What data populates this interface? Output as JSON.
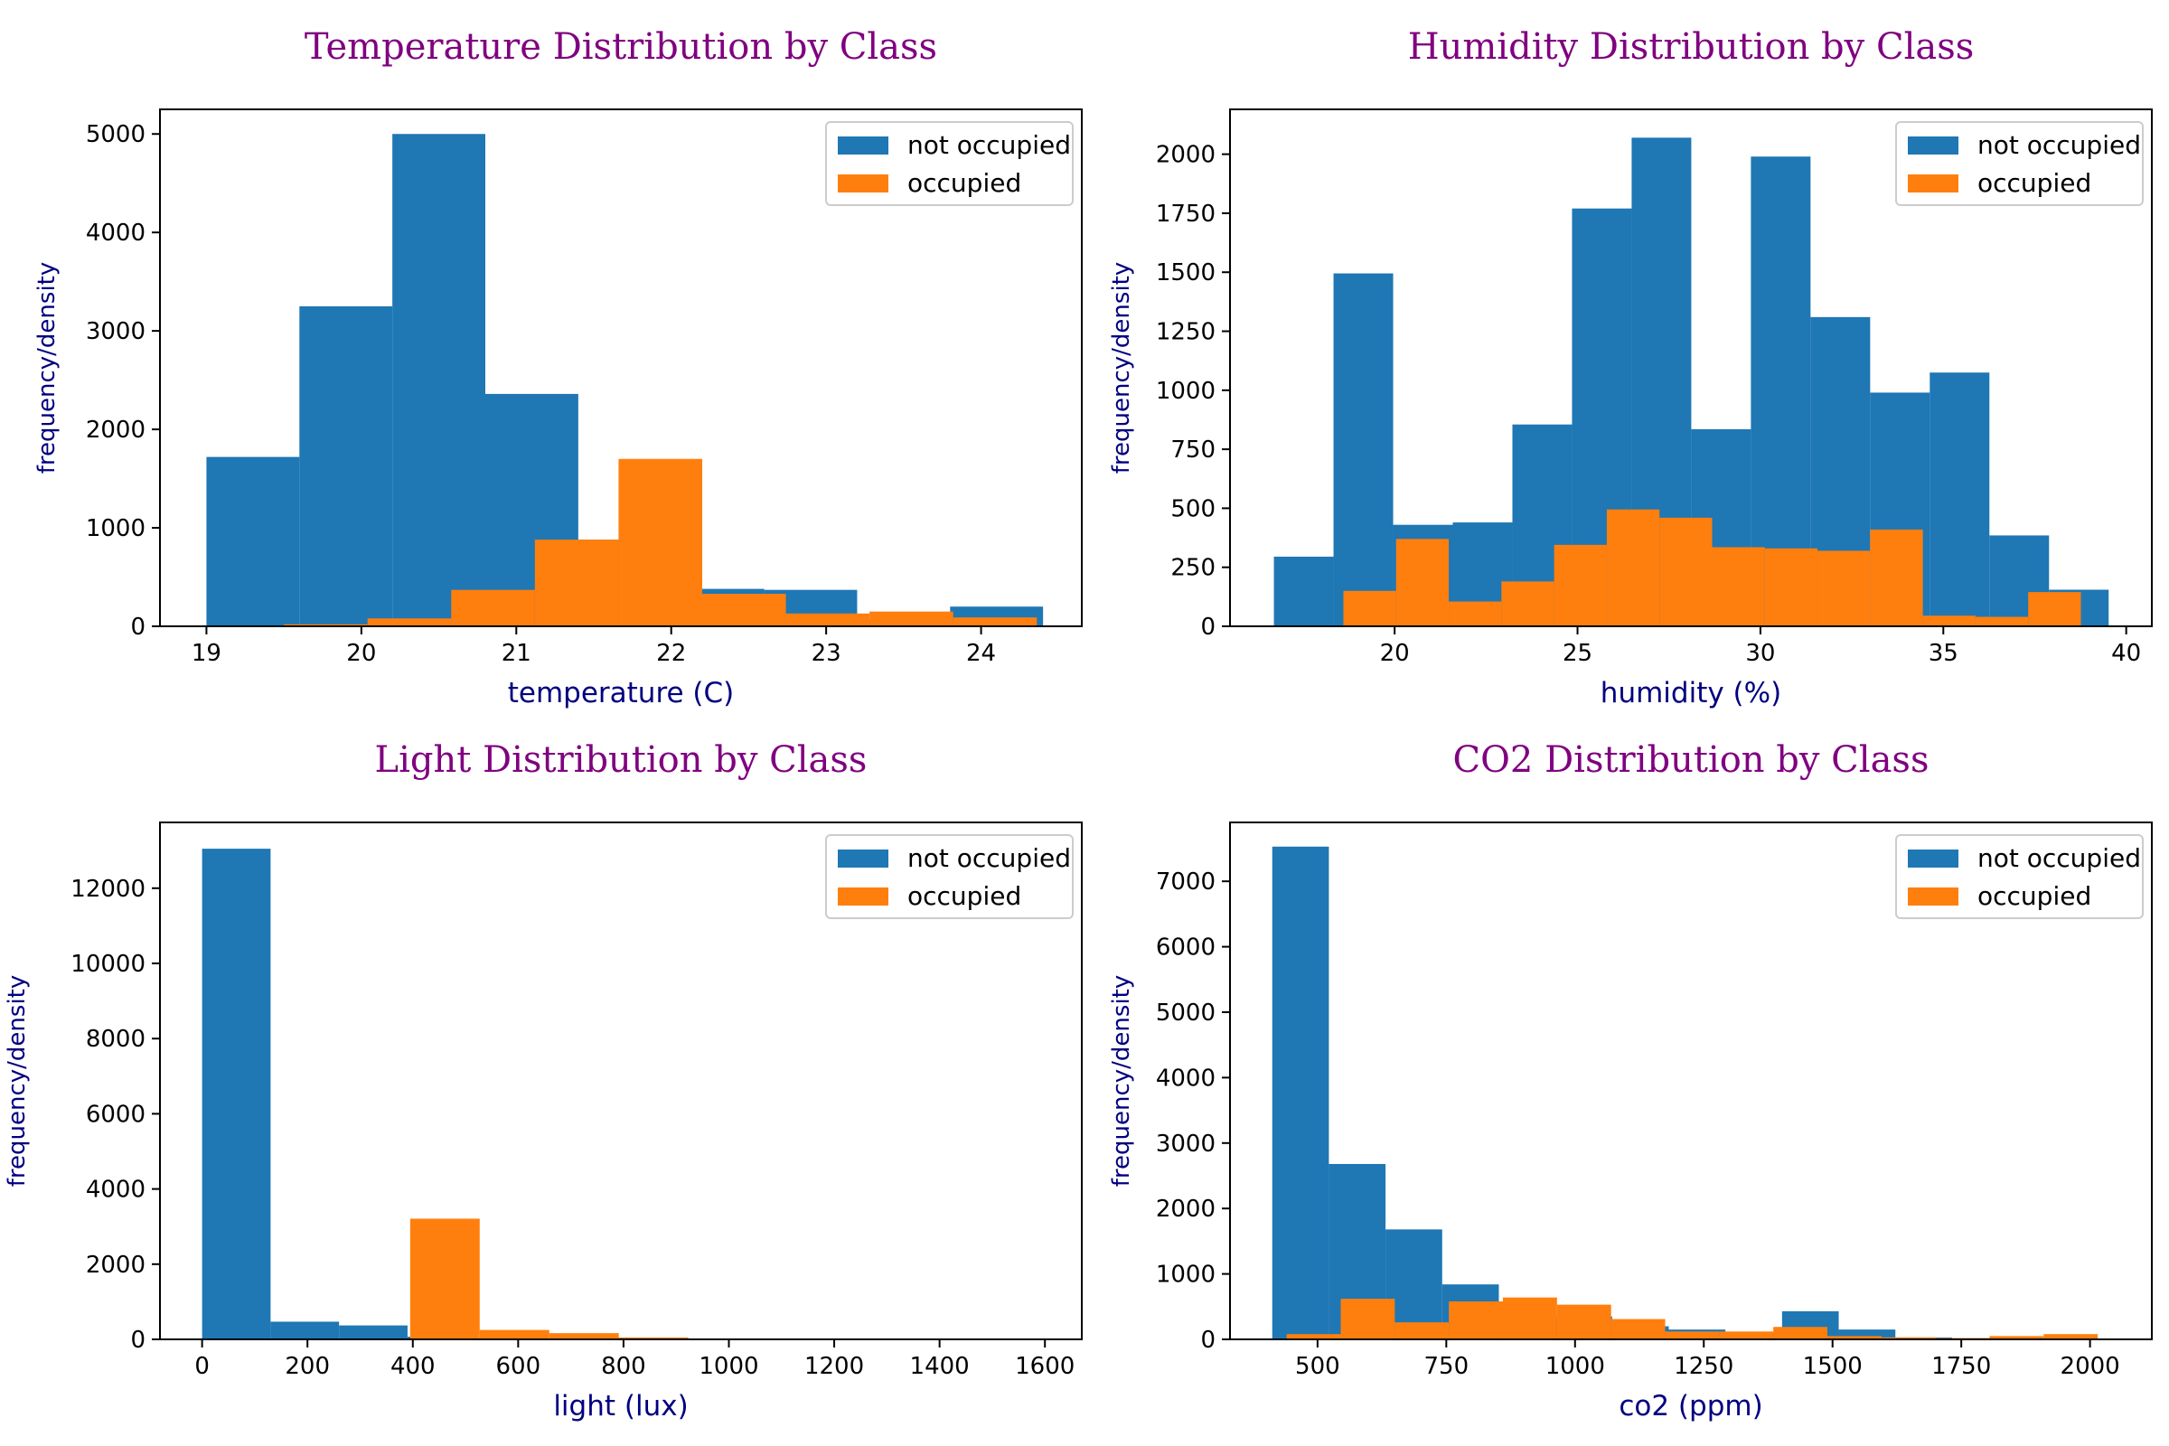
{
  "colors": {
    "not_occupied": "#1f77b4",
    "occupied": "#ff7f0e",
    "title": "#800080",
    "label": "#000080"
  },
  "chart_data": [
    {
      "type": "bar",
      "subtype": "histogram-overlay",
      "title": "Temperature Distribution by Class",
      "xlabel": "temperature (C)",
      "ylabel": "frequency/density",
      "xlim": [
        18.7,
        24.65
      ],
      "ylim": [
        0,
        5250
      ],
      "xticks": [
        19,
        20,
        21,
        22,
        23,
        24
      ],
      "yticks": [
        0,
        1000,
        2000,
        3000,
        4000,
        5000
      ],
      "legend": "top-right",
      "grid": false,
      "series": [
        {
          "name": "not occupied",
          "bins": [
            [
              19.0,
              19.6,
              1720
            ],
            [
              19.6,
              20.2,
              3250
            ],
            [
              20.2,
              20.8,
              5000
            ],
            [
              20.8,
              21.4,
              2360
            ],
            [
              21.4,
              22.0,
              880
            ],
            [
              22.0,
              22.6,
              380
            ],
            [
              22.6,
              23.2,
              370
            ],
            [
              23.2,
              23.8,
              60
            ],
            [
              23.8,
              24.4,
              200
            ]
          ]
        },
        {
          "name": "occupied",
          "bins": [
            [
              19.5,
              20.04,
              20
            ],
            [
              20.04,
              20.58,
              80
            ],
            [
              20.58,
              21.12,
              370
            ],
            [
              21.12,
              21.66,
              880
            ],
            [
              21.66,
              22.2,
              1700
            ],
            [
              22.2,
              22.74,
              330
            ],
            [
              22.74,
              23.28,
              130
            ],
            [
              23.28,
              23.82,
              150
            ],
            [
              23.82,
              24.36,
              90
            ]
          ]
        }
      ]
    },
    {
      "type": "bar",
      "subtype": "histogram-overlay",
      "title": "Humidity Distribution by Class",
      "xlabel": "humidity (%)",
      "ylabel": "frequency/density",
      "xlim": [
        15.5,
        40.7
      ],
      "ylim": [
        0,
        2190
      ],
      "xticks": [
        20,
        25,
        30,
        35,
        40
      ],
      "yticks": [
        0,
        250,
        500,
        750,
        1000,
        1250,
        1500,
        1750,
        2000
      ],
      "legend": "top-right",
      "grid": false,
      "series": [
        {
          "name": "not occupied",
          "bins": [
            [
              16.7,
              18.33,
              295
            ],
            [
              18.33,
              19.96,
              1495
            ],
            [
              19.96,
              21.59,
              430
            ],
            [
              21.59,
              23.22,
              440
            ],
            [
              23.22,
              24.85,
              855
            ],
            [
              24.85,
              26.48,
              1770
            ],
            [
              26.48,
              28.11,
              2070
            ],
            [
              28.11,
              29.74,
              835
            ],
            [
              29.74,
              31.37,
              1990
            ],
            [
              31.37,
              33.0,
              1310
            ],
            [
              33.0,
              34.63,
              990
            ],
            [
              34.63,
              36.26,
              1075
            ],
            [
              36.26,
              37.89,
              385
            ],
            [
              37.89,
              39.52,
              155
            ]
          ]
        },
        {
          "name": "occupied",
          "bins": [
            [
              18.6,
              20.04,
              150
            ],
            [
              20.04,
              21.48,
              370
            ],
            [
              21.48,
              22.92,
              105
            ],
            [
              22.92,
              24.36,
              190
            ],
            [
              24.36,
              25.8,
              345
            ],
            [
              25.8,
              27.24,
              495
            ],
            [
              27.24,
              28.68,
              460
            ],
            [
              28.68,
              30.12,
              335
            ],
            [
              30.12,
              31.56,
              330
            ],
            [
              31.56,
              33.0,
              320
            ],
            [
              33.0,
              34.44,
              410
            ],
            [
              34.44,
              35.88,
              45
            ],
            [
              35.88,
              37.32,
              40
            ],
            [
              37.32,
              38.76,
              145
            ]
          ]
        }
      ]
    },
    {
      "type": "bar",
      "subtype": "histogram-overlay",
      "title": "Light Distribution by Class",
      "xlabel": "light (lux)",
      "ylabel": "frequency/density",
      "xlim": [
        -80,
        1670
      ],
      "ylim": [
        0,
        13750
      ],
      "xticks": [
        0,
        200,
        400,
        600,
        800,
        1000,
        1200,
        1400,
        1600
      ],
      "yticks": [
        0,
        2000,
        4000,
        6000,
        8000,
        10000,
        12000
      ],
      "legend": "top-right",
      "grid": false,
      "series": [
        {
          "name": "not occupied",
          "bins": [
            [
              0,
              130,
              13050
            ],
            [
              130,
              260,
              470
            ],
            [
              260,
              390,
              370
            ],
            [
              390,
              520,
              70
            ],
            [
              520,
              650,
              40
            ],
            [
              650,
              780,
              20
            ],
            [
              780,
              910,
              10
            ],
            [
              910,
              1040,
              5
            ],
            [
              1040,
              1170,
              3
            ],
            [
              1170,
              1300,
              2
            ],
            [
              1300,
              1430,
              2
            ],
            [
              1430,
              1560,
              1
            ]
          ]
        },
        {
          "name": "occupied",
          "bins": [
            [
              395,
              527,
              3210
            ],
            [
              527,
              659,
              250
            ],
            [
              659,
              791,
              165
            ],
            [
              791,
              923,
              50
            ],
            [
              923,
              1055,
              8
            ],
            [
              1055,
              1187,
              4
            ],
            [
              1187,
              1319,
              2
            ],
            [
              1319,
              1451,
              2
            ],
            [
              1451,
              1583,
              1
            ]
          ]
        }
      ]
    },
    {
      "type": "bar",
      "subtype": "histogram-overlay",
      "title": "CO2 Distribution by Class",
      "xlabel": "co2 (ppm)",
      "ylabel": "frequency/density",
      "xlim": [
        330,
        2120
      ],
      "ylim": [
        0,
        7900
      ],
      "xticks": [
        500,
        750,
        1000,
        1250,
        1500,
        1750,
        2000
      ],
      "yticks": [
        0,
        1000,
        2000,
        3000,
        4000,
        5000,
        6000,
        7000
      ],
      "legend": "top-right",
      "grid": false,
      "series": [
        {
          "name": "not occupied",
          "bins": [
            [
              412,
              522,
              7530
            ],
            [
              522,
              632,
              2680
            ],
            [
              632,
              742,
              1680
            ],
            [
              742,
              852,
              840
            ],
            [
              852,
              962,
              500
            ],
            [
              962,
              1072,
              350
            ],
            [
              1072,
              1182,
              200
            ],
            [
              1182,
              1292,
              150
            ],
            [
              1292,
              1402,
              100
            ],
            [
              1402,
              1512,
              430
            ],
            [
              1512,
              1622,
              150
            ],
            [
              1622,
              1732,
              30
            ],
            [
              1732,
              1842,
              15
            ],
            [
              1842,
              1952,
              10
            ]
          ]
        },
        {
          "name": "occupied",
          "bins": [
            [
              440,
              545,
              80
            ],
            [
              545,
              650,
              620
            ],
            [
              650,
              755,
              260
            ],
            [
              755,
              860,
              580
            ],
            [
              860,
              965,
              640
            ],
            [
              965,
              1070,
              530
            ],
            [
              1070,
              1175,
              310
            ],
            [
              1175,
              1280,
              120
            ],
            [
              1280,
              1385,
              120
            ],
            [
              1385,
              1490,
              190
            ],
            [
              1490,
              1595,
              50
            ],
            [
              1595,
              1700,
              30
            ],
            [
              1700,
              1805,
              20
            ],
            [
              1805,
              1910,
              50
            ],
            [
              1910,
              2015,
              80
            ]
          ]
        }
      ]
    }
  ]
}
